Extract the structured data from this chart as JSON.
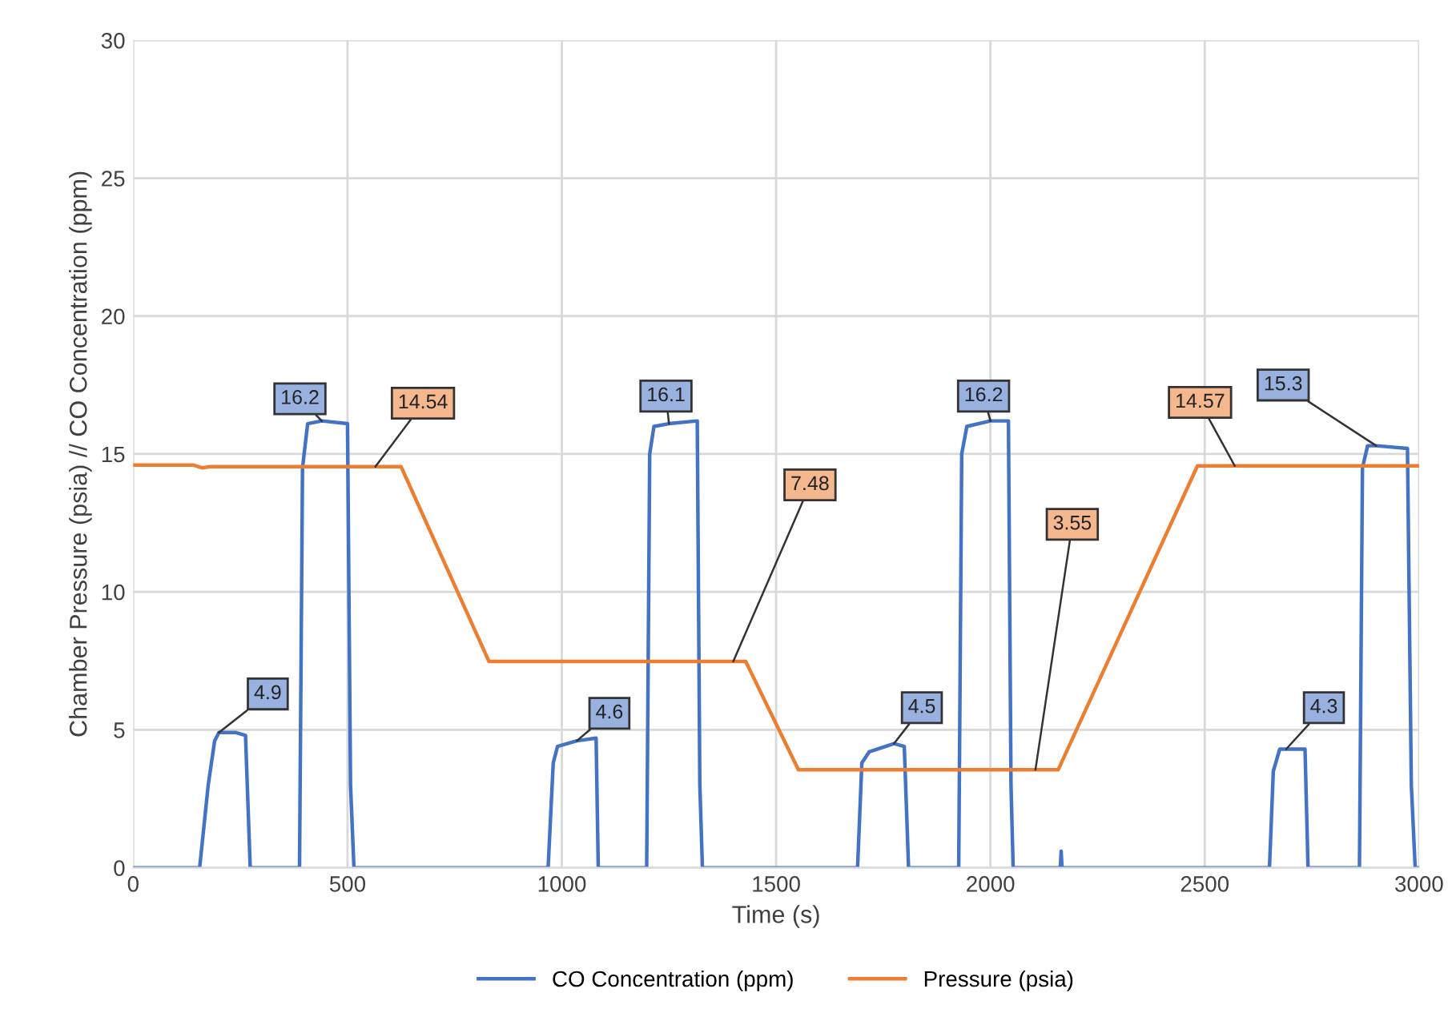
{
  "chart_data": {
    "type": "line",
    "xlabel": "Time (s)",
    "ylabel": "Chamber Pressure (psia) // CO Concentration (ppm)",
    "xlim": [
      0,
      3000
    ],
    "xticks": [
      0,
      500,
      1000,
      1500,
      2000,
      2500,
      3000
    ],
    "ylim": [
      0,
      30
    ],
    "yticks": [
      0,
      5,
      10,
      15,
      20,
      25,
      30
    ],
    "grid": true,
    "legend": "bottom",
    "marker": "none",
    "line_style": "solid",
    "series": [
      {
        "name": "CO Concentration (ppm)",
        "color": "#4472c4",
        "x": [
          0,
          155,
          175,
          190,
          200,
          240,
          262,
          273,
          388,
          395,
          407,
          440,
          500,
          507,
          515,
          968,
          980,
          990,
          1035,
          1080,
          1085,
          1198,
          1205,
          1215,
          1250,
          1316,
          1322,
          1328,
          1690,
          1700,
          1717,
          1775,
          1799,
          1809,
          1926,
          1933,
          1945,
          2000,
          2042,
          2048,
          2053,
          2163,
          2165,
          2167,
          2651,
          2660,
          2675,
          2690,
          2734,
          2741,
          2861,
          2868,
          2880,
          2900,
          2973,
          2982,
          2991,
          3000
        ],
        "values": [
          0,
          0,
          3.0,
          4.6,
          4.9,
          4.9,
          4.8,
          0,
          0,
          14.5,
          16.1,
          16.2,
          16.1,
          3,
          0,
          0,
          3.8,
          4.4,
          4.6,
          4.7,
          0,
          0,
          15,
          16.0,
          16.1,
          16.2,
          3,
          0,
          0,
          3.8,
          4.2,
          4.5,
          4.4,
          0,
          0,
          15,
          16.0,
          16.2,
          16.2,
          3,
          0,
          0,
          0.6,
          0,
          0,
          3.5,
          4.3,
          4.3,
          4.3,
          0,
          0,
          14.5,
          15.3,
          15.3,
          15.2,
          3,
          0,
          0
        ],
        "value_labels": [
          null,
          null,
          null,
          null,
          "4.9",
          null,
          null,
          null,
          null,
          null,
          null,
          "16.2",
          null,
          null,
          null,
          null,
          null,
          null,
          "4.6",
          null,
          null,
          null,
          null,
          null,
          "16.1",
          null,
          null,
          null,
          null,
          null,
          null,
          "4.5",
          null,
          null,
          null,
          null,
          null,
          "16.2",
          null,
          null,
          null,
          null,
          null,
          null,
          null,
          null,
          null,
          "4.3",
          null,
          null,
          null,
          null,
          null,
          "15.3",
          null,
          null,
          null,
          null
        ]
      },
      {
        "name": "Pressure (psia)",
        "color": "#ed7d31",
        "x": [
          0,
          140,
          160,
          180,
          565,
          625,
          830,
          1400,
          1429,
          1552,
          2105,
          2158,
          2483,
          2570,
          3000
        ],
        "values": [
          14.6,
          14.6,
          14.5,
          14.54,
          14.54,
          14.54,
          7.48,
          7.48,
          7.48,
          3.55,
          3.55,
          3.55,
          14.57,
          14.57,
          14.57
        ],
        "value_labels": [
          null,
          null,
          null,
          null,
          "14.54",
          null,
          null,
          "7.48",
          null,
          null,
          "3.55",
          null,
          null,
          "14.57",
          null
        ]
      }
    ]
  }
}
